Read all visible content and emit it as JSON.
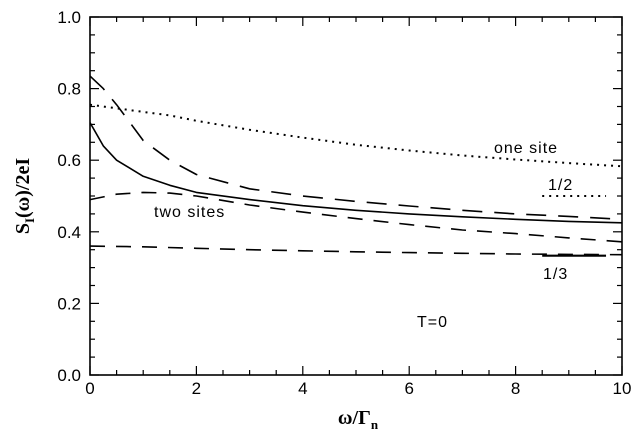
{
  "chart_data": {
    "type": "line",
    "xlabel": "ω/Γ",
    "xlabel_sub": "n",
    "ylabel": "S",
    "ylabel_sub": "I",
    "ylabel_rest": "(ω)/2eI",
    "xlim": [
      0,
      10
    ],
    "ylim": [
      0.0,
      1.0
    ],
    "x_ticks": [
      "0",
      "2",
      "4",
      "6",
      "8",
      "10"
    ],
    "y_ticks": [
      "0.0",
      "0.2",
      "0.4",
      "0.6",
      "0.8",
      "1.0"
    ],
    "grid": false,
    "annotations": {
      "one_site": "one site",
      "two_sites": "two sites",
      "half": "1/2",
      "third": "1/3",
      "temperature": "T=0"
    },
    "series": [
      {
        "style": "dotted",
        "x": [
          0,
          0.5,
          1,
          1.5,
          2,
          3,
          4,
          5,
          6,
          7,
          8,
          9,
          10
        ],
        "y": [
          0.755,
          0.745,
          0.735,
          0.725,
          0.71,
          0.685,
          0.663,
          0.643,
          0.627,
          0.613,
          0.602,
          0.592,
          0.583
        ]
      },
      {
        "style": "long-dashed",
        "x": [
          0,
          0.25,
          0.5,
          0.8,
          1,
          1.5,
          2,
          3,
          4,
          5,
          6,
          7,
          8,
          9,
          10
        ],
        "y": [
          0.835,
          0.8,
          0.755,
          0.695,
          0.655,
          0.6,
          0.56,
          0.52,
          0.5,
          0.485,
          0.472,
          0.46,
          0.45,
          0.443,
          0.435
        ]
      },
      {
        "style": "solid",
        "x": [
          0,
          0.25,
          0.5,
          1,
          1.5,
          2,
          3,
          4,
          5,
          6,
          7,
          8,
          9,
          10
        ],
        "y": [
          0.705,
          0.64,
          0.6,
          0.555,
          0.53,
          0.51,
          0.49,
          0.473,
          0.46,
          0.45,
          0.442,
          0.435,
          0.429,
          0.425
        ]
      },
      {
        "style": "dashed",
        "x": [
          0,
          0.5,
          1,
          1.5,
          2,
          3,
          4,
          5,
          6,
          7,
          8,
          9,
          10
        ],
        "y": [
          0.49,
          0.505,
          0.51,
          0.508,
          0.5,
          0.475,
          0.455,
          0.437,
          0.42,
          0.405,
          0.395,
          0.383,
          0.372
        ]
      },
      {
        "style": "dashed",
        "x": [
          0,
          1,
          2,
          3,
          4,
          5,
          6,
          7,
          8,
          9,
          10
        ],
        "y": [
          0.36,
          0.358,
          0.354,
          0.35,
          0.347,
          0.344,
          0.342,
          0.34,
          0.338,
          0.337,
          0.336
        ]
      }
    ],
    "reference_lines": [
      {
        "label": "1/2",
        "style": "dotted",
        "x": [
          8.5,
          9.7
        ],
        "y": 0.5
      },
      {
        "label": "1/3",
        "style": "solid",
        "x": [
          8.5,
          9.7
        ],
        "y": 0.3333
      }
    ]
  }
}
